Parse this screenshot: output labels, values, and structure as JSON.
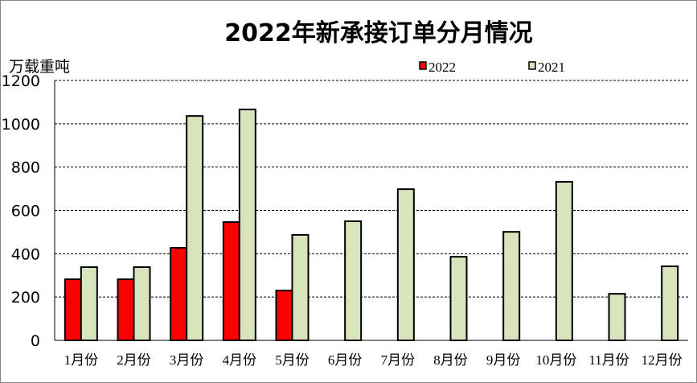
{
  "chart_data": {
    "type": "bar",
    "title": "2022年新承接订单分月情况",
    "ylabel": "万载重吨",
    "xlabel": "",
    "ylim": [
      0,
      1200
    ],
    "yticks": [
      0,
      200,
      400,
      600,
      800,
      1000,
      1200
    ],
    "grid": true,
    "legend_position": "top-right",
    "categories": [
      "1月份",
      "2月份",
      "3月份",
      "4月份",
      "5月份",
      "6月份",
      "7月份",
      "8月份",
      "9月份",
      "10月份",
      "11月份",
      "12月份"
    ],
    "series": [
      {
        "name": "2022",
        "color": "#ff0000",
        "values": [
          282,
          282,
          427,
          546,
          230,
          null,
          null,
          null,
          null,
          null,
          null,
          null
        ]
      },
      {
        "name": "2021",
        "color": "#d8e4bc",
        "values": [
          338,
          338,
          1036,
          1066,
          487,
          550,
          698,
          386,
          501,
          732,
          215,
          342
        ]
      }
    ]
  }
}
